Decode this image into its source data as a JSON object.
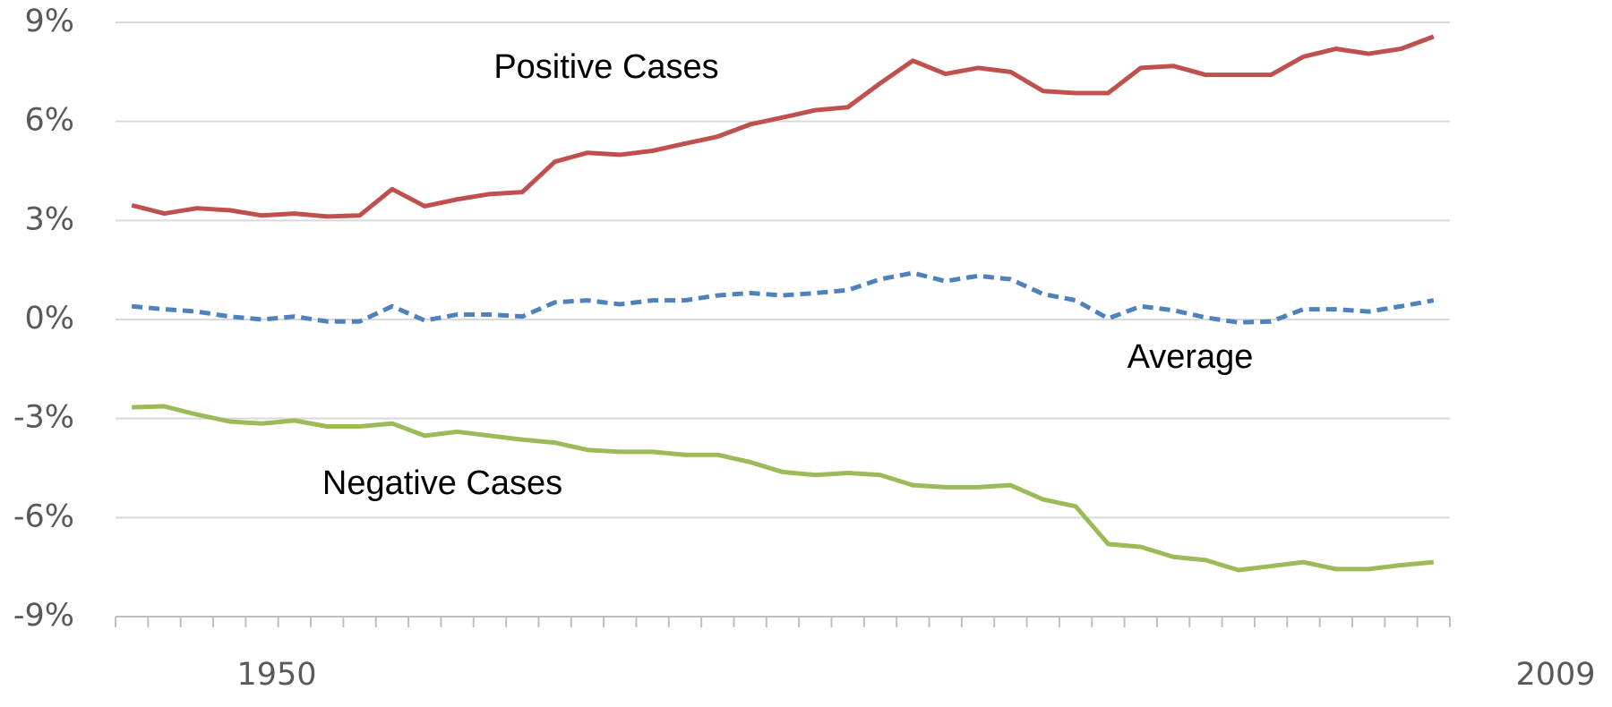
{
  "chart_data": {
    "type": "line",
    "categories": [
      null,
      null,
      null,
      null,
      null,
      null,
      null,
      null,
      null,
      null,
      null,
      null,
      null,
      null,
      null,
      null,
      null,
      null,
      null,
      null,
      null,
      null,
      null,
      null,
      null,
      null,
      null,
      null,
      null,
      null,
      null,
      null,
      null,
      null,
      null,
      null,
      null,
      null,
      null,
      null,
      null
    ],
    "x_start_label": "1950",
    "x_end_label": "2009",
    "ylim": [
      -9,
      9
    ],
    "yticks": [
      {
        "value": -9,
        "label": "-9%"
      },
      {
        "value": -6,
        "label": "-6%"
      },
      {
        "value": -3,
        "label": "-3%"
      },
      {
        "value": 0,
        "label": "0%"
      },
      {
        "value": 3,
        "label": "3%"
      },
      {
        "value": 6,
        "label": "6%"
      },
      {
        "value": 9,
        "label": "9%"
      }
    ],
    "grid": true,
    "series": [
      {
        "name": "Positive Cases",
        "color": "#c0504d",
        "line_style": "solid",
        "values": [
          3.46,
          3.21,
          3.37,
          3.31,
          3.15,
          3.21,
          3.12,
          3.15,
          3.95,
          3.43,
          3.64,
          3.8,
          3.86,
          4.78,
          5.05,
          4.99,
          5.11,
          5.33,
          5.54,
          5.91,
          6.12,
          6.34,
          6.43,
          7.16,
          7.84,
          7.44,
          7.62,
          7.5,
          6.92,
          6.86,
          6.86,
          7.62,
          7.68,
          7.41,
          7.41,
          7.41,
          7.96,
          8.2,
          8.05,
          8.2,
          8.57
        ]
      },
      {
        "name": "Average",
        "color": "#4f81bd",
        "line_style": "dashed",
        "values": [
          0.4,
          0.31,
          0.24,
          0.09,
          0,
          0.09,
          -0.06,
          -0.06,
          0.4,
          -0.03,
          0.15,
          0.15,
          0.09,
          0.52,
          0.58,
          0.46,
          0.58,
          0.58,
          0.73,
          0.8,
          0.73,
          0.8,
          0.89,
          1.22,
          1.41,
          1.16,
          1.32,
          1.22,
          0.77,
          0.58,
          0.03,
          0.4,
          0.28,
          0.06,
          -0.09,
          -0.06,
          0.31,
          0.31,
          0.24,
          0.4,
          0.58
        ]
      },
      {
        "name": "Negative Cases",
        "color": "#9bbb59",
        "line_style": "solid",
        "values": [
          -2.66,
          -2.63,
          -2.88,
          -3.09,
          -3.15,
          -3.06,
          -3.24,
          -3.24,
          -3.15,
          -3.52,
          -3.4,
          -3.52,
          -3.64,
          -3.73,
          -3.95,
          -4.01,
          -4.01,
          -4.1,
          -4.1,
          -4.32,
          -4.62,
          -4.71,
          -4.65,
          -4.71,
          -5.02,
          -5.08,
          -5.08,
          -5.02,
          -5.45,
          -5.66,
          -6.8,
          -6.89,
          -7.19,
          -7.29,
          -7.59,
          -7.47,
          -7.35,
          -7.56,
          -7.56,
          -7.44,
          -7.35
        ]
      }
    ]
  }
}
